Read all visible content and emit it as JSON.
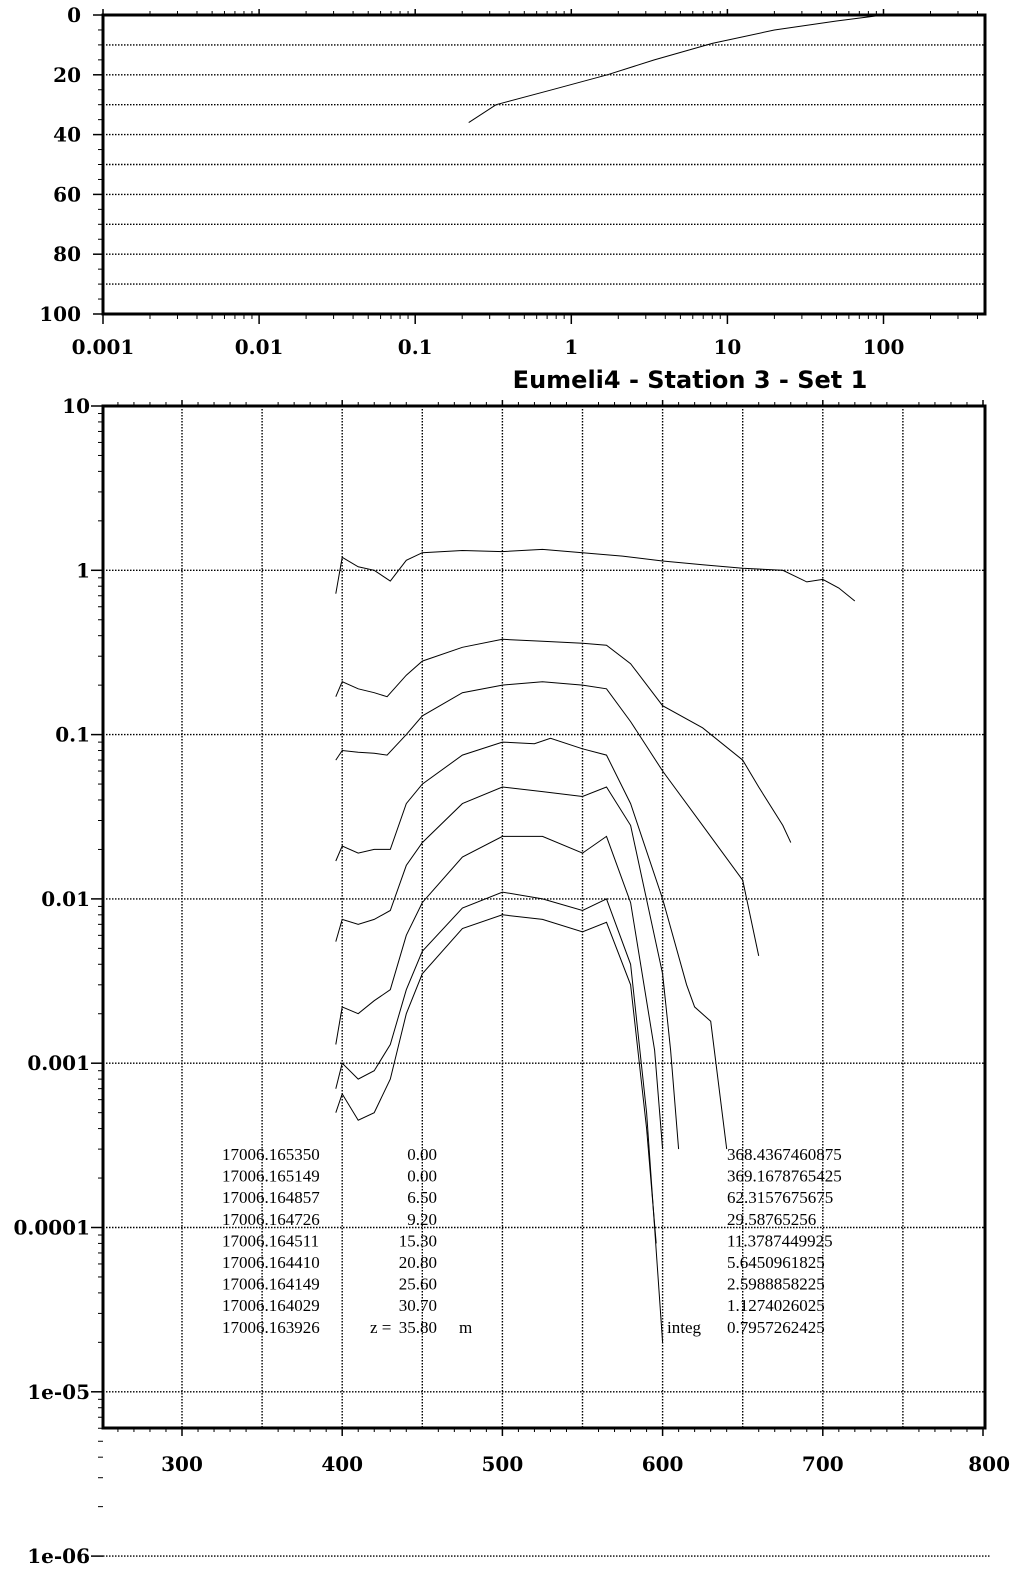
{
  "chart_data": [
    {
      "type": "line",
      "title": "",
      "xlabel": "",
      "ylabel": "",
      "x_scale": "log",
      "xlim": [
        0.001,
        400
      ],
      "ylim": [
        100,
        0
      ],
      "x_ticks": [
        0.001,
        0.01,
        0.1,
        1,
        10,
        100
      ],
      "x_tick_labels": [
        "0.001",
        "0.01",
        "0.1",
        "1",
        "10",
        "100"
      ],
      "y_ticks": [
        0,
        20,
        40,
        60,
        80,
        100
      ],
      "y_tick_labels": [
        "0",
        "20",
        "40",
        "60",
        "80",
        "100"
      ],
      "grid": "horizontal dotted lines at depths 10, 20, ..., 90",
      "series": [
        {
          "points": [
            [
              100,
              0
            ],
            [
              50,
              2
            ],
            [
              20,
              5
            ],
            [
              8,
              9.5
            ],
            [
              3.4,
              15
            ],
            [
              1.7,
              20
            ],
            [
              0.75,
              25
            ],
            [
              0.33,
              30
            ],
            [
              0.22,
              36
            ]
          ]
        }
      ]
    },
    {
      "type": "line",
      "title": "Eumeli4 - Station 3 - Set 1",
      "xlabel": "",
      "ylabel": "",
      "y_scale": "log",
      "xlim": [
        250,
        800
      ],
      "ylim": [
        1e-06,
        10
      ],
      "x_ticks": [
        300,
        400,
        500,
        600,
        700,
        800
      ],
      "x_tick_labels": [
        "300",
        "400",
        "500",
        "600",
        "700",
        "800"
      ],
      "y_ticks": [
        10,
        1,
        0.1,
        0.01,
        0.001,
        0.0001,
        1e-05,
        1e-06
      ],
      "y_tick_labels": [
        "10",
        "1",
        "0.1",
        "0.01",
        "0.001",
        "0.0001",
        "1e-05",
        "1e-06"
      ],
      "grid": "dotted lines every 50 nm and at each decade",
      "series": [
        {
          "points": [
            [
              396,
              0.72
            ],
            [
              400,
              1.2
            ],
            [
              410,
              1.05
            ],
            [
              420,
              1.0
            ],
            [
              430,
              0.86
            ],
            [
              440,
              1.15
            ],
            [
              450,
              1.28
            ],
            [
              475,
              1.32
            ],
            [
              500,
              1.3
            ],
            [
              525,
              1.34
            ],
            [
              550,
              1.28
            ],
            [
              575,
              1.22
            ],
            [
              600,
              1.14
            ],
            [
              625,
              1.08
            ],
            [
              650,
              1.03
            ],
            [
              675,
              1.0
            ],
            [
              690,
              0.85
            ],
            [
              700,
              0.88
            ],
            [
              710,
              0.78
            ],
            [
              720,
              0.65
            ]
          ]
        },
        {
          "points": [
            [
              396,
              0.17
            ],
            [
              400,
              0.21
            ],
            [
              410,
              0.19
            ],
            [
              420,
              0.18
            ],
            [
              428,
              0.17
            ],
            [
              440,
              0.23
            ],
            [
              450,
              0.28
            ],
            [
              475,
              0.34
            ],
            [
              500,
              0.38
            ],
            [
              525,
              0.37
            ],
            [
              550,
              0.36
            ],
            [
              565,
              0.35
            ],
            [
              580,
              0.27
            ],
            [
              600,
              0.15
            ],
            [
              625,
              0.11
            ],
            [
              650,
              0.07
            ],
            [
              660,
              0.048
            ],
            [
              675,
              0.028
            ],
            [
              680,
              0.022
            ]
          ]
        },
        {
          "points": [
            [
              396,
              0.07
            ],
            [
              400,
              0.08
            ],
            [
              410,
              0.078
            ],
            [
              420,
              0.077
            ],
            [
              428,
              0.075
            ],
            [
              440,
              0.1
            ],
            [
              450,
              0.13
            ],
            [
              475,
              0.18
            ],
            [
              500,
              0.2
            ],
            [
              525,
              0.21
            ],
            [
              550,
              0.2
            ],
            [
              565,
              0.19
            ],
            [
              580,
              0.12
            ],
            [
              600,
              0.06
            ],
            [
              625,
              0.028
            ],
            [
              650,
              0.013
            ],
            [
              660,
              0.0045
            ]
          ]
        },
        {
          "points": [
            [
              396,
              0.017
            ],
            [
              400,
              0.021
            ],
            [
              410,
              0.019
            ],
            [
              420,
              0.02
            ],
            [
              430,
              0.02
            ],
            [
              440,
              0.038
            ],
            [
              450,
              0.05
            ],
            [
              475,
              0.075
            ],
            [
              500,
              0.09
            ],
            [
              520,
              0.088
            ],
            [
              530,
              0.095
            ],
            [
              550,
              0.082
            ],
            [
              565,
              0.075
            ],
            [
              580,
              0.038
            ],
            [
              600,
              0.01
            ],
            [
              615,
              0.003
            ],
            [
              620,
              0.0022
            ],
            [
              630,
              0.0018
            ],
            [
              640,
              0.0003
            ]
          ]
        },
        {
          "points": [
            [
              396,
              0.0055
            ],
            [
              400,
              0.0075
            ],
            [
              410,
              0.007
            ],
            [
              420,
              0.0075
            ],
            [
              430,
              0.0085
            ],
            [
              440,
              0.016
            ],
            [
              450,
              0.022
            ],
            [
              475,
              0.038
            ],
            [
              500,
              0.048
            ],
            [
              525,
              0.045
            ],
            [
              550,
              0.042
            ],
            [
              565,
              0.048
            ],
            [
              580,
              0.028
            ],
            [
              600,
              0.0035
            ],
            [
              605,
              0.0012
            ],
            [
              610,
              0.0003
            ]
          ]
        },
        {
          "points": [
            [
              396,
              0.0013
            ],
            [
              400,
              0.0022
            ],
            [
              410,
              0.002
            ],
            [
              420,
              0.0024
            ],
            [
              430,
              0.0028
            ],
            [
              440,
              0.006
            ],
            [
              450,
              0.0095
            ],
            [
              475,
              0.018
            ],
            [
              500,
              0.024
            ],
            [
              525,
              0.024
            ],
            [
              550,
              0.019
            ],
            [
              565,
              0.024
            ],
            [
              580,
              0.0095
            ],
            [
              595,
              0.0012
            ],
            [
              600,
              0.0003
            ]
          ]
        },
        {
          "points": [
            [
              396,
              0.0007
            ],
            [
              400,
              0.001
            ],
            [
              410,
              0.0008
            ],
            [
              420,
              0.0009
            ],
            [
              430,
              0.0013
            ],
            [
              440,
              0.0028
            ],
            [
              450,
              0.0048
            ],
            [
              475,
              0.0088
            ],
            [
              500,
              0.011
            ],
            [
              525,
              0.01
            ],
            [
              550,
              0.0085
            ],
            [
              565,
              0.01
            ],
            [
              580,
              0.004
            ],
            [
              590,
              0.0005
            ],
            [
              600,
              2e-05
            ]
          ]
        },
        {
          "points": [
            [
              396,
              0.0005
            ],
            [
              400,
              0.00065
            ],
            [
              410,
              0.00045
            ],
            [
              420,
              0.0005
            ],
            [
              430,
              0.0008
            ],
            [
              440,
              0.002
            ],
            [
              450,
              0.0035
            ],
            [
              475,
              0.0066
            ],
            [
              500,
              0.008
            ],
            [
              525,
              0.0075
            ],
            [
              550,
              0.0063
            ],
            [
              565,
              0.0072
            ],
            [
              580,
              0.003
            ],
            [
              590,
              0.0004
            ],
            [
              596,
              8e-05
            ]
          ]
        }
      ],
      "annotations": {
        "rows": [
          [
            "17006.165350",
            "0.00",
            "368.4367460875"
          ],
          [
            "17006.165149",
            "0.00",
            "369.1678765425"
          ],
          [
            "17006.164857",
            "6.50",
            "62.3157675675"
          ],
          [
            "17006.164726",
            "9.20",
            "29.58765256"
          ],
          [
            "17006.164511",
            "15.30",
            "11.3787449925"
          ],
          [
            "17006.164410",
            "20.80",
            "5.6450961825"
          ],
          [
            "17006.164149",
            "25.60",
            "2.5988858225"
          ],
          [
            "17006.164029",
            "30.70",
            "1.1274026025"
          ],
          [
            "17006.163926",
            "35.80",
            "0.7957262425"
          ]
        ],
        "z_label": "z =",
        "unit_label": "m",
        "integ_label": "integ"
      }
    }
  ]
}
